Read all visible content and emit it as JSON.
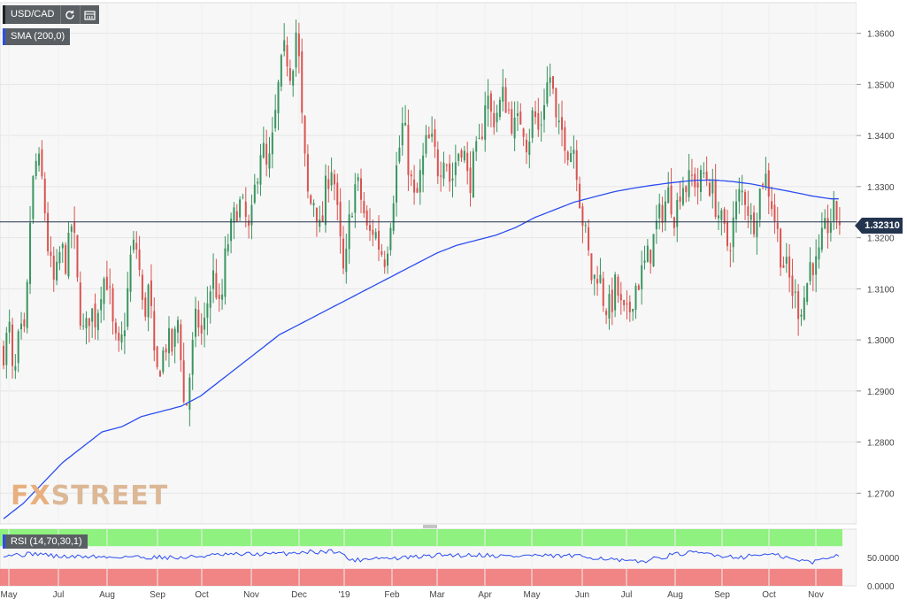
{
  "toolbar": {
    "symbol": "USD/CAD",
    "refresh_icon": "refresh-icon",
    "calendar_icon": "calendar-icon",
    "indicator_label": "SMA (200,0)",
    "rsi_label": "RSI (14,70,30,1)"
  },
  "watermark": {
    "part1": "FX",
    "part2": "STREET"
  },
  "current_price_label": "1.32310",
  "colors": {
    "up": "#3a9460",
    "down": "#d9534f",
    "sma": "#2b4df0",
    "rsi_overbought_zone": "#7df06a",
    "rsi_oversold_zone": "#f07070",
    "price_line": "#23344f",
    "background": "#f7f7f7"
  },
  "chart_data": [
    {
      "type": "candlestick",
      "title": "USD/CAD",
      "series_name": "SMA (200,0)",
      "ylim": [
        1.264,
        1.366
      ],
      "y_ticks": [
        "1.2700",
        "1.2800",
        "1.2900",
        "1.3000",
        "1.3100",
        "1.3200",
        "1.3300",
        "1.3400",
        "1.3500",
        "1.3600"
      ],
      "y_tick_values": [
        1.27,
        1.28,
        1.29,
        1.3,
        1.31,
        1.32,
        1.33,
        1.34,
        1.35,
        1.36
      ],
      "x_ticks": [
        "May",
        "Jul",
        "Aug",
        "Sep",
        "Oct",
        "Nov",
        "Dec",
        "'19",
        "Feb",
        "Mar",
        "Apr",
        "May",
        "Jun",
        "Jul",
        "Aug",
        "Sep",
        "Oct",
        "Nov"
      ],
      "current_price": 1.3231,
      "grid": true,
      "close_anchors": [
        [
          0,
          1.298
        ],
        [
          6,
          1.302
        ],
        [
          10,
          1.29
        ],
        [
          16,
          1.301
        ],
        [
          22,
          1.3
        ],
        [
          28,
          1.328
        ],
        [
          34,
          1.336
        ],
        [
          40,
          1.33
        ],
        [
          46,
          1.316
        ],
        [
          52,
          1.31
        ],
        [
          58,
          1.318
        ],
        [
          64,
          1.315
        ],
        [
          70,
          1.324
        ],
        [
          76,
          1.308
        ],
        [
          82,
          1.3
        ],
        [
          88,
          1.306
        ],
        [
          94,
          1.304
        ],
        [
          100,
          1.312
        ],
        [
          106,
          1.312
        ],
        [
          112,
          1.3
        ],
        [
          118,
          1.297
        ],
        [
          124,
          1.305
        ],
        [
          130,
          1.318
        ],
        [
          136,
          1.318
        ],
        [
          142,
          1.304
        ],
        [
          148,
          1.311
        ],
        [
          154,
          1.292
        ],
        [
          160,
          1.296
        ],
        [
          166,
          1.3
        ],
        [
          172,
          1.298
        ],
        [
          178,
          1.305
        ],
        [
          184,
          1.284
        ],
        [
          190,
          1.295
        ],
        [
          196,
          1.305
        ],
        [
          202,
          1.3
        ],
        [
          208,
          1.309
        ],
        [
          214,
          1.313
        ],
        [
          220,
          1.304
        ],
        [
          226,
          1.318
        ],
        [
          232,
          1.322
        ],
        [
          238,
          1.327
        ],
        [
          244,
          1.325
        ],
        [
          250,
          1.32
        ],
        [
          256,
          1.331
        ],
        [
          262,
          1.339
        ],
        [
          268,
          1.332
        ],
        [
          274,
          1.34
        ],
        [
          280,
          1.351
        ],
        [
          286,
          1.357
        ],
        [
          292,
          1.352
        ],
        [
          298,
          1.362
        ],
        [
          304,
          1.339
        ],
        [
          310,
          1.326
        ],
        [
          316,
          1.328
        ],
        [
          322,
          1.32
        ],
        [
          328,
          1.331
        ],
        [
          334,
          1.335
        ],
        [
          340,
          1.322
        ],
        [
          346,
          1.311
        ],
        [
          352,
          1.325
        ],
        [
          358,
          1.331
        ],
        [
          364,
          1.327
        ],
        [
          370,
          1.32
        ],
        [
          376,
          1.322
        ],
        [
          382,
          1.318
        ],
        [
          388,
          1.316
        ],
        [
          394,
          1.326
        ],
        [
          400,
          1.335
        ],
        [
          406,
          1.343
        ],
        [
          412,
          1.333
        ],
        [
          418,
          1.326
        ],
        [
          424,
          1.333
        ],
        [
          430,
          1.339
        ],
        [
          436,
          1.338
        ],
        [
          442,
          1.333
        ],
        [
          448,
          1.338
        ],
        [
          454,
          1.33
        ],
        [
          460,
          1.336
        ],
        [
          466,
          1.339
        ],
        [
          472,
          1.33
        ],
        [
          478,
          1.335
        ],
        [
          484,
          1.338
        ],
        [
          490,
          1.349
        ],
        [
          496,
          1.343
        ],
        [
          502,
          1.345
        ],
        [
          508,
          1.348
        ],
        [
          514,
          1.344
        ],
        [
          520,
          1.341
        ],
        [
          526,
          1.344
        ],
        [
          532,
          1.338
        ],
        [
          538,
          1.345
        ],
        [
          544,
          1.34
        ],
        [
          550,
          1.349
        ],
        [
          556,
          1.352
        ],
        [
          562,
          1.34
        ],
        [
          568,
          1.341
        ],
        [
          574,
          1.337
        ],
        [
          580,
          1.338
        ],
        [
          586,
          1.326
        ],
        [
          592,
          1.319
        ],
        [
          598,
          1.311
        ],
        [
          604,
          1.314
        ],
        [
          610,
          1.307
        ],
        [
          616,
          1.306
        ],
        [
          622,
          1.311
        ],
        [
          628,
          1.305
        ],
        [
          634,
          1.304
        ],
        [
          640,
          1.31
        ],
        [
          646,
          1.312
        ],
        [
          652,
          1.315
        ],
        [
          658,
          1.318
        ],
        [
          664,
          1.323
        ],
        [
          670,
          1.326
        ],
        [
          676,
          1.329
        ],
        [
          682,
          1.324
        ],
        [
          688,
          1.331
        ],
        [
          694,
          1.33
        ],
        [
          700,
          1.332
        ],
        [
          706,
          1.33
        ],
        [
          712,
          1.333
        ],
        [
          718,
          1.33
        ],
        [
          724,
          1.326
        ],
        [
          730,
          1.322
        ],
        [
          736,
          1.318
        ],
        [
          742,
          1.324
        ],
        [
          748,
          1.329
        ],
        [
          754,
          1.328
        ],
        [
          760,
          1.322
        ],
        [
          766,
          1.327
        ],
        [
          772,
          1.333
        ],
        [
          778,
          1.329
        ],
        [
          784,
          1.323
        ],
        [
          790,
          1.316
        ],
        [
          796,
          1.313
        ],
        [
          802,
          1.309
        ],
        [
          808,
          1.306
        ],
        [
          814,
          1.309
        ],
        [
          820,
          1.316
        ],
        [
          826,
          1.314
        ],
        [
          832,
          1.32
        ],
        [
          838,
          1.323
        ],
        [
          844,
          1.325
        ],
        [
          850,
          1.323
        ]
      ],
      "sma_anchors": [
        [
          0,
          1.265
        ],
        [
          20,
          1.268
        ],
        [
          40,
          1.272
        ],
        [
          60,
          1.276
        ],
        [
          80,
          1.279
        ],
        [
          100,
          1.282
        ],
        [
          120,
          1.283
        ],
        [
          140,
          1.285
        ],
        [
          160,
          1.286
        ],
        [
          180,
          1.287
        ],
        [
          200,
          1.289
        ],
        [
          220,
          1.292
        ],
        [
          240,
          1.295
        ],
        [
          260,
          1.298
        ],
        [
          280,
          1.301
        ],
        [
          300,
          1.303
        ],
        [
          320,
          1.305
        ],
        [
          340,
          1.307
        ],
        [
          360,
          1.309
        ],
        [
          380,
          1.311
        ],
        [
          400,
          1.313
        ],
        [
          420,
          1.315
        ],
        [
          440,
          1.317
        ],
        [
          460,
          1.3185
        ],
        [
          480,
          1.3195
        ],
        [
          500,
          1.3205
        ],
        [
          520,
          1.322
        ],
        [
          540,
          1.324
        ],
        [
          560,
          1.3255
        ],
        [
          580,
          1.327
        ],
        [
          600,
          1.328
        ],
        [
          620,
          1.329
        ],
        [
          640,
          1.3297
        ],
        [
          660,
          1.3303
        ],
        [
          680,
          1.3308
        ],
        [
          700,
          1.3312
        ],
        [
          720,
          1.3313
        ],
        [
          740,
          1.331
        ],
        [
          760,
          1.3305
        ],
        [
          780,
          1.3297
        ],
        [
          800,
          1.329
        ],
        [
          820,
          1.3282
        ],
        [
          840,
          1.3276
        ],
        [
          850,
          1.3276
        ]
      ]
    },
    {
      "type": "line",
      "title": "RSI (14,70,30,1)",
      "ylim": [
        0,
        100
      ],
      "y_ticks": [
        "50.0000",
        "0.0000"
      ],
      "y_tick_values": [
        50,
        0
      ],
      "zones": [
        [
          70,
          100
        ],
        [
          0,
          30
        ]
      ],
      "rsi_anchors": [
        [
          0,
          55
        ],
        [
          20,
          55
        ],
        [
          40,
          57
        ],
        [
          60,
          52
        ],
        [
          80,
          51
        ],
        [
          100,
          52
        ],
        [
          120,
          50
        ],
        [
          140,
          52
        ],
        [
          160,
          50
        ],
        [
          180,
          51
        ],
        [
          200,
          49
        ],
        [
          220,
          52
        ],
        [
          240,
          54
        ],
        [
          260,
          55
        ],
        [
          280,
          56
        ],
        [
          300,
          56
        ],
        [
          320,
          57
        ],
        [
          340,
          60
        ],
        [
          360,
          60
        ],
        [
          380,
          62
        ],
        [
          390,
          48
        ],
        [
          400,
          45
        ],
        [
          420,
          50
        ],
        [
          440,
          48
        ],
        [
          460,
          50
        ],
        [
          480,
          52
        ],
        [
          500,
          55
        ],
        [
          520,
          54
        ],
        [
          540,
          55
        ],
        [
          560,
          53
        ],
        [
          580,
          52
        ],
        [
          600,
          54
        ],
        [
          620,
          52
        ],
        [
          640,
          53
        ],
        [
          660,
          51
        ],
        [
          680,
          49
        ],
        [
          700,
          44
        ],
        [
          720,
          42
        ],
        [
          740,
          48
        ],
        [
          760,
          55
        ],
        [
          780,
          58
        ],
        [
          800,
          57
        ],
        [
          820,
          52
        ],
        [
          840,
          51
        ],
        [
          860,
          56
        ],
        [
          880,
          53
        ],
        [
          900,
          45
        ],
        [
          920,
          42
        ],
        [
          940,
          53
        ],
        [
          950,
          53
        ]
      ]
    }
  ]
}
